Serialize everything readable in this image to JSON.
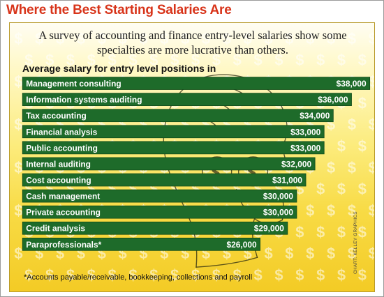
{
  "title": "Where the Best Starting Salaries Are",
  "subtitle": "A survey of accounting and finance entry-level salaries show some specialties are more lucrative than others.",
  "footnote": "*Accounts payable/receivable, bookkeeping, collections and payroll",
  "credit": "CHART: KELLEY GRAPHICS",
  "colors": {
    "title": "#d8341a",
    "bar": "#1e6b2a",
    "bar_edge": "#0f4a18",
    "panel_top": "#fffdf2",
    "panel_bottom": "#f3cb25"
  },
  "chart_data": {
    "type": "bar",
    "orientation": "horizontal",
    "title": "Average salary for entry level positions in",
    "categories": [
      "Management consulting",
      "Information systems auditing",
      "Tax accounting",
      "Financial analysis",
      "Public accounting",
      "Internal auditing",
      "Cost accounting",
      "Cash management",
      "Private accounting",
      "Credit analysis",
      "Paraprofessionals*"
    ],
    "values": [
      38000,
      36000,
      34000,
      33000,
      33000,
      32000,
      31000,
      30000,
      30000,
      29000,
      26000
    ],
    "value_labels": [
      "$38,000",
      "$36,000",
      "$34,000",
      "$33,000",
      "$33,000",
      "$32,000",
      "$31,000",
      "$30,000",
      "$30,000",
      "$29,000",
      "$26,000"
    ],
    "grid": false,
    "legend": "none"
  }
}
